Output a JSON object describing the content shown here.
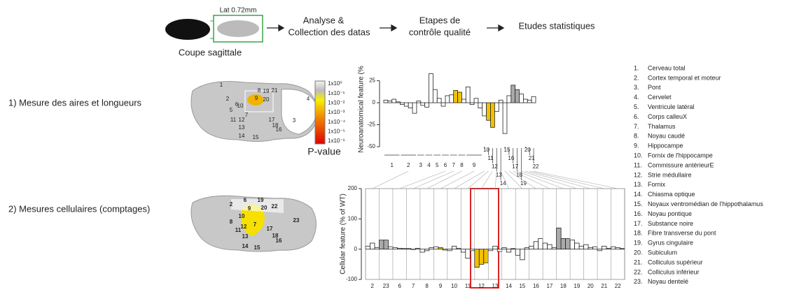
{
  "flow": {
    "slice_label": "Lat 0.72mm",
    "caption": "Coupe sagittale",
    "steps": [
      [
        "Analyse &",
        "Collection des datas"
      ],
      [
        "Etapes de",
        "contrôle qualité"
      ],
      [
        "Etudes statistiques"
      ]
    ]
  },
  "sections": [
    "1) Mesure des aires et longueurs",
    "2) Mesures cellulaires (comptages)"
  ],
  "brain1_labels": [
    "1",
    "2",
    "3",
    "4",
    "5",
    "6",
    "7",
    "8",
    "9",
    "10",
    "11",
    "12",
    "13",
    "14",
    "15",
    "16",
    "17",
    "18",
    "19",
    "20",
    "21"
  ],
  "brain2_labels": [
    "2",
    "6",
    "7",
    "8",
    "9",
    "10",
    "11",
    "12",
    "13",
    "14",
    "15",
    "16",
    "17",
    "18",
    "19",
    "20",
    "22",
    "23"
  ],
  "colorbar": {
    "ticks": [
      "1x10⁰",
      "1x10⁻¹",
      "1x10⁻²",
      "1x10⁻³",
      "1x10⁻⁴",
      "1x10⁻⁵",
      "1x10⁻⁶"
    ],
    "title": "P-value"
  },
  "chart_data": [
    {
      "type": "bar",
      "ylabel": "Neuroanatomical feature (%",
      "ylim": [
        -50,
        35
      ],
      "yticks": [
        -50,
        -25,
        0,
        25
      ],
      "groups": [
        {
          "label": "1",
          "values": [
            3,
            2,
            4,
            1
          ],
          "colors": [
            "#fff",
            "#fff",
            "#fff",
            "#fff"
          ]
        },
        {
          "label": "2",
          "values": [
            -2,
            -4,
            -6,
            -12
          ],
          "colors": [
            "#fff",
            "#fff",
            "#fff",
            "#fff"
          ]
        },
        {
          "label": "3",
          "values": [
            2,
            -3
          ],
          "colors": [
            "#fff",
            "#fff"
          ]
        },
        {
          "label": "4",
          "values": [
            -5,
            33
          ],
          "colors": [
            "#fff",
            "#fff"
          ]
        },
        {
          "label": "5",
          "values": [
            15,
            5
          ],
          "colors": [
            "#fff",
            "#fff"
          ]
        },
        {
          "label": "6",
          "values": [
            -4,
            8
          ],
          "colors": [
            "#fff",
            "#fff"
          ]
        },
        {
          "label": "7",
          "values": [
            9,
            14
          ],
          "colors": [
            "#fff",
            "#f2c200"
          ]
        },
        {
          "label": "8",
          "values": [
            12,
            4
          ],
          "colors": [
            "#f2c200",
            "#fff"
          ]
        },
        {
          "label": "9",
          "values": [
            18,
            -2,
            5,
            -6
          ],
          "colors": [
            "#fff",
            "#fff",
            "#fff",
            "#fff"
          ]
        },
        {
          "label": "10",
          "values": [
            -15
          ],
          "colors": [
            "#fff"
          ]
        },
        {
          "label": "11",
          "values": [
            -20
          ],
          "colors": [
            "#f2c200"
          ]
        },
        {
          "label": "12",
          "values": [
            -28
          ],
          "colors": [
            "#f2c200"
          ]
        },
        {
          "label": "13",
          "values": [
            -10
          ],
          "colors": [
            "#fff"
          ]
        },
        {
          "label": "14",
          "values": [
            3
          ],
          "colors": [
            "#fff"
          ]
        },
        {
          "label": "15",
          "values": [
            -35
          ],
          "colors": [
            "#fff"
          ]
        },
        {
          "label": "16",
          "values": [
            8
          ],
          "colors": [
            "#fff"
          ]
        },
        {
          "label": "17",
          "values": [
            20
          ],
          "colors": [
            "#aaa"
          ]
        },
        {
          "label": "18",
          "values": [
            15
          ],
          "colors": [
            "#aaa"
          ]
        },
        {
          "label": "19",
          "values": [
            10
          ],
          "colors": [
            "#fff"
          ]
        },
        {
          "label": "20",
          "values": [
            4
          ],
          "colors": [
            "#fff"
          ]
        },
        {
          "label": "21",
          "values": [
            3
          ],
          "colors": [
            "#fff"
          ]
        },
        {
          "label": "22",
          "values": [
            7
          ],
          "colors": [
            "#fff"
          ]
        }
      ]
    },
    {
      "type": "bar",
      "ylabel": "Cellular feature (% of WT)",
      "ylim": [
        -100,
        200
      ],
      "yticks": [
        -100,
        0,
        100,
        200
      ],
      "groups": [
        {
          "label": "2",
          "values": [
            10,
            20,
            5
          ],
          "colors": [
            "#fff",
            "#fff",
            "#fff"
          ]
        },
        {
          "label": "23",
          "values": [
            30,
            30,
            8
          ],
          "colors": [
            "#aaa",
            "#aaa",
            "#fff"
          ]
        },
        {
          "label": "6",
          "values": [
            5,
            3,
            2
          ],
          "colors": [
            "#fff",
            "#fff",
            "#fff"
          ]
        },
        {
          "label": "7",
          "values": [
            2,
            0,
            3
          ],
          "colors": [
            "#fff",
            "#fff",
            "#fff"
          ]
        },
        {
          "label": "8",
          "values": [
            -10,
            -5,
            5
          ],
          "colors": [
            "#fff",
            "#fff",
            "#fff"
          ]
        },
        {
          "label": "9",
          "values": [
            8,
            5,
            -3
          ],
          "colors": [
            "#fff",
            "#f2c200",
            "#fff"
          ]
        },
        {
          "label": "10",
          "values": [
            -5,
            10,
            3
          ],
          "colors": [
            "#fff",
            "#fff",
            "#fff"
          ]
        },
        {
          "label": "11",
          "values": [
            -10,
            -30,
            -5
          ],
          "colors": [
            "#fff",
            "#fff",
            "#fff"
          ]
        },
        {
          "label": "12",
          "values": [
            -60,
            -50,
            -45
          ],
          "colors": [
            "#f2c200",
            "#f2c200",
            "#f2c200"
          ]
        },
        {
          "label": "13",
          "values": [
            -5,
            10,
            -8
          ],
          "colors": [
            "#fff",
            "#fff",
            "#fff"
          ]
        },
        {
          "label": "14",
          "values": [
            5,
            -10,
            2
          ],
          "colors": [
            "#fff",
            "#fff",
            "#fff"
          ]
        },
        {
          "label": "15",
          "values": [
            -20,
            -35,
            5
          ],
          "colors": [
            "#fff",
            "#fff",
            "#fff"
          ]
        },
        {
          "label": "16",
          "values": [
            10,
            25,
            35
          ],
          "colors": [
            "#fff",
            "#fff",
            "#fff"
          ]
        },
        {
          "label": "17",
          "values": [
            20,
            15,
            5
          ],
          "colors": [
            "#fff",
            "#fff",
            "#fff"
          ]
        },
        {
          "label": "18",
          "values": [
            70,
            35,
            35
          ],
          "colors": [
            "#aaa",
            "#aaa",
            "#aaa"
          ]
        },
        {
          "label": "19",
          "values": [
            30,
            20,
            10
          ],
          "colors": [
            "#fff",
            "#fff",
            "#fff"
          ]
        },
        {
          "label": "20",
          "values": [
            15,
            5,
            8
          ],
          "colors": [
            "#fff",
            "#fff",
            "#fff"
          ]
        },
        {
          "label": "21",
          "values": [
            -5,
            10,
            3
          ],
          "colors": [
            "#fff",
            "#fff",
            "#fff"
          ]
        },
        {
          "label": "22",
          "values": [
            8,
            5,
            2
          ],
          "colors": [
            "#fff",
            "#fff",
            "#fff"
          ]
        }
      ]
    }
  ],
  "legend": [
    {
      "num": "1.",
      "name": "Cerveau total"
    },
    {
      "num": "2.",
      "name": "Cortex temporal et moteur"
    },
    {
      "num": "3.",
      "name": "Pont"
    },
    {
      "num": "4.",
      "name": "Cervelet"
    },
    {
      "num": "5.",
      "name": "Ventricule latéral"
    },
    {
      "num": "6.",
      "name": "Corps calleuX"
    },
    {
      "num": "7.",
      "name": "Thalamus"
    },
    {
      "num": "8.",
      "name": "Noyau caudé"
    },
    {
      "num": "9.",
      "name": "Hippocampe"
    },
    {
      "num": "10.",
      "name": "Fornix de l'hippocampe"
    },
    {
      "num": "11.",
      "name": "Commissure antérieurE"
    },
    {
      "num": "12.",
      "name": "Strie médullaire"
    },
    {
      "num": "13.",
      "name": "Fornix"
    },
    {
      "num": "14.",
      "name": "Chiasma optique"
    },
    {
      "num": "15.",
      "name": "Noyaux ventromédian de l'hippothalamus"
    },
    {
      "num": "16.",
      "name": "Noyau pontique"
    },
    {
      "num": "17.",
      "name": "Substance noire"
    },
    {
      "num": "18.",
      "name": "Fibre transverse du pont"
    },
    {
      "num": "19.",
      "name": "Gyrus cingulaire"
    },
    {
      "num": "20.",
      "name": "Subiculum"
    },
    {
      "num": "21.",
      "name": "Colliculus supérieur"
    },
    {
      "num": "22.",
      "name": "Colliculus inférieur"
    },
    {
      "num": "23.",
      "name": "Noyau dentelé"
    }
  ]
}
